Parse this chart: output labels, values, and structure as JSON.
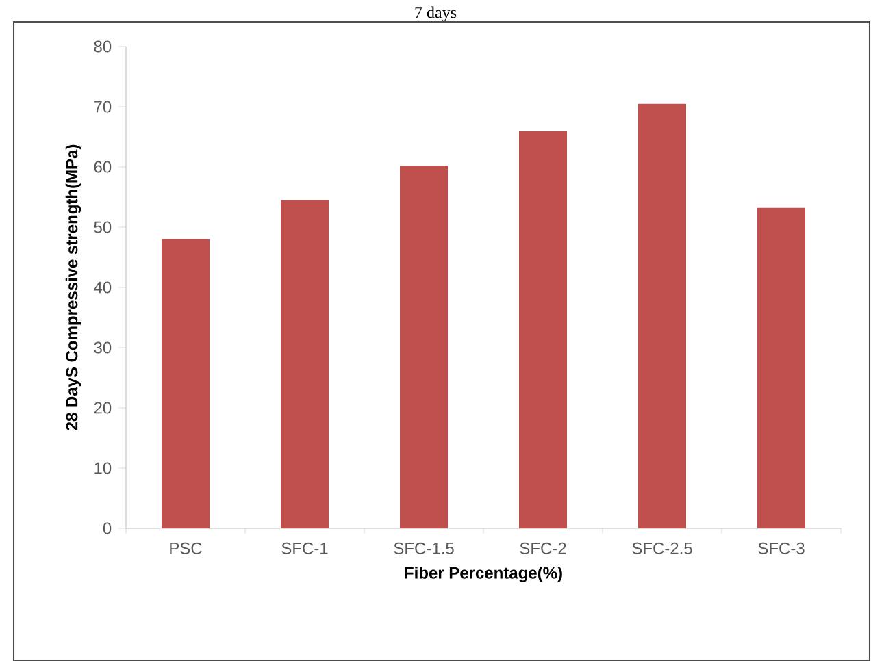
{
  "chart_data": {
    "type": "bar",
    "categories": [
      "PSC",
      "SFC-1",
      "SFC-1.5",
      "SFC-2",
      "SFC-2.5",
      "SFC-3"
    ],
    "values": [
      48,
      54.5,
      60.2,
      65.9,
      70.5,
      53.2
    ],
    "color": "#c0504d",
    "xlabel": "Fiber Percentage(%)",
    "ylabel": "28 DayS Compressive strength(MPa)",
    "ylim": [
      0,
      80
    ],
    "yticks": [
      0,
      10,
      20,
      30,
      40,
      50,
      60,
      70,
      80
    ],
    "annotations": [
      "7 days"
    ]
  }
}
